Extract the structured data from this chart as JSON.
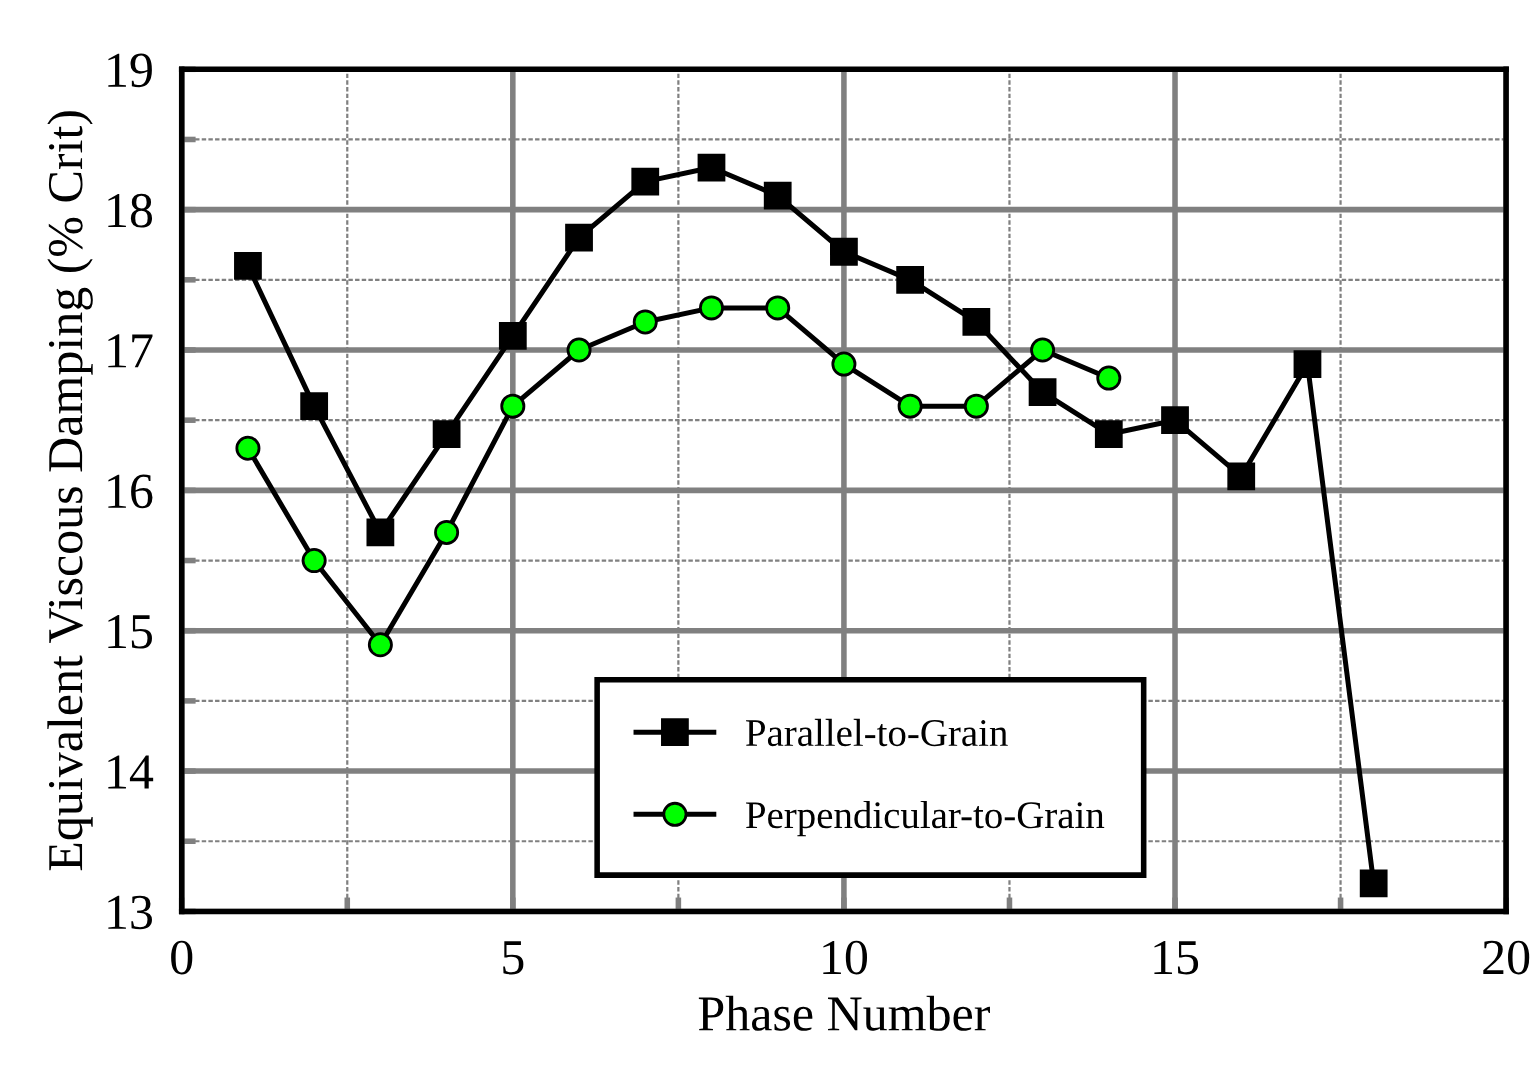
{
  "chart_data": {
    "type": "line",
    "xlabel": "Phase Number",
    "ylabel": "Equivalent Viscous Damping (% Crit)",
    "xlim": [
      0,
      20
    ],
    "ylim": [
      13,
      19
    ],
    "xticks": [
      0,
      {
        "value": 2.5,
        "label": null
      },
      5,
      {
        "value": 7.5,
        "label": null
      },
      10,
      {
        "value": 12.5,
        "label": null
      },
      15,
      {
        "value": 17.5,
        "label": null
      },
      20
    ],
    "yticks": [
      13,
      {
        "value": 13.5,
        "label": null
      },
      14,
      {
        "value": 14.5,
        "label": null
      },
      15,
      {
        "value": 15.5,
        "label": null
      },
      16,
      {
        "value": 16.5,
        "label": null
      },
      17,
      {
        "value": 17.5,
        "label": null
      },
      18,
      {
        "value": 18.5,
        "label": null
      },
      19
    ],
    "grid": true,
    "legend": "bottom",
    "line_style": "solid",
    "series": [
      {
        "name": "Parallel-to-Grain",
        "color": "#000000",
        "marker": "square",
        "x": [
          1,
          2,
          3,
          4,
          5,
          6,
          7,
          8,
          9,
          10,
          11,
          12,
          13,
          14,
          15,
          16,
          17,
          18
        ],
        "values": [
          17.6,
          16.6,
          15.7,
          16.4,
          17.1,
          17.8,
          18.2,
          18.3,
          18.1,
          17.7,
          17.5,
          17.2,
          16.7,
          16.4,
          16.5,
          16.1,
          16.9,
          13.2
        ]
      },
      {
        "name": "Perpendicular-to-Grain",
        "color": "#00ff00",
        "marker": "circle",
        "x": [
          1,
          2,
          3,
          4,
          5,
          6,
          7,
          8,
          9,
          10,
          11,
          12,
          13,
          14
        ],
        "values": [
          16.3,
          15.5,
          14.9,
          15.7,
          16.6,
          17.0,
          17.2,
          17.3,
          17.3,
          16.9,
          16.6,
          16.6,
          17.0,
          16.8
        ]
      }
    ]
  }
}
